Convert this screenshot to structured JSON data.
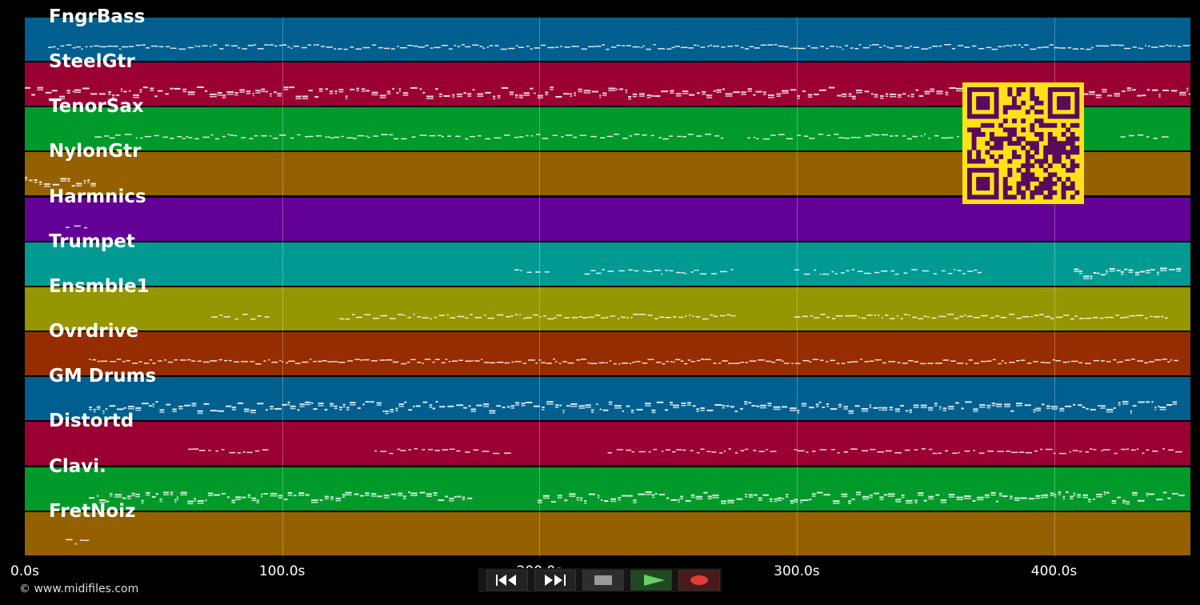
{
  "tracks": [
    {
      "name": "FngrBass",
      "color": "#005f8f"
    },
    {
      "name": "SteelGtr",
      "color": "#9b0033"
    },
    {
      "name": "TenorSax",
      "color": "#009a2a"
    },
    {
      "name": "NylonGtr",
      "color": "#956100"
    },
    {
      "name": "Harmnics",
      "color": "#630096"
    },
    {
      "name": "Trumpet",
      "color": "#009a93"
    },
    {
      "name": "Ensmble1",
      "color": "#969600"
    },
    {
      "name": "Ovrdrive",
      "color": "#962d00"
    },
    {
      "name": "GM Drums",
      "color": "#005f8f"
    },
    {
      "name": "Distortd",
      "color": "#9b0033"
    },
    {
      "name": "Clavi.",
      "color": "#009a2a"
    },
    {
      "name": "FretNoiz",
      "color": "#956100"
    }
  ],
  "timeline": {
    "ticks": [
      "0.0s",
      "100.0s",
      "200.0s",
      "300.0s",
      "400.0s"
    ],
    "tick_values": [
      0,
      100,
      200,
      300,
      400
    ],
    "max_seconds": 453
  },
  "footer": {
    "copyright": "© www.midifiles.com"
  },
  "transport": {
    "buttons": [
      {
        "name": "rewind-icon",
        "color": "#ffffff"
      },
      {
        "name": "fast-forward-icon",
        "color": "#ffffff"
      },
      {
        "name": "stop-icon",
        "color": "#9a9a9a"
      },
      {
        "name": "play-icon",
        "color": "#66d066"
      },
      {
        "name": "record-icon",
        "color": "#e03c3c"
      }
    ]
  },
  "qr": {
    "fg": "#5a0a5c",
    "bg": "#ffe11a"
  }
}
